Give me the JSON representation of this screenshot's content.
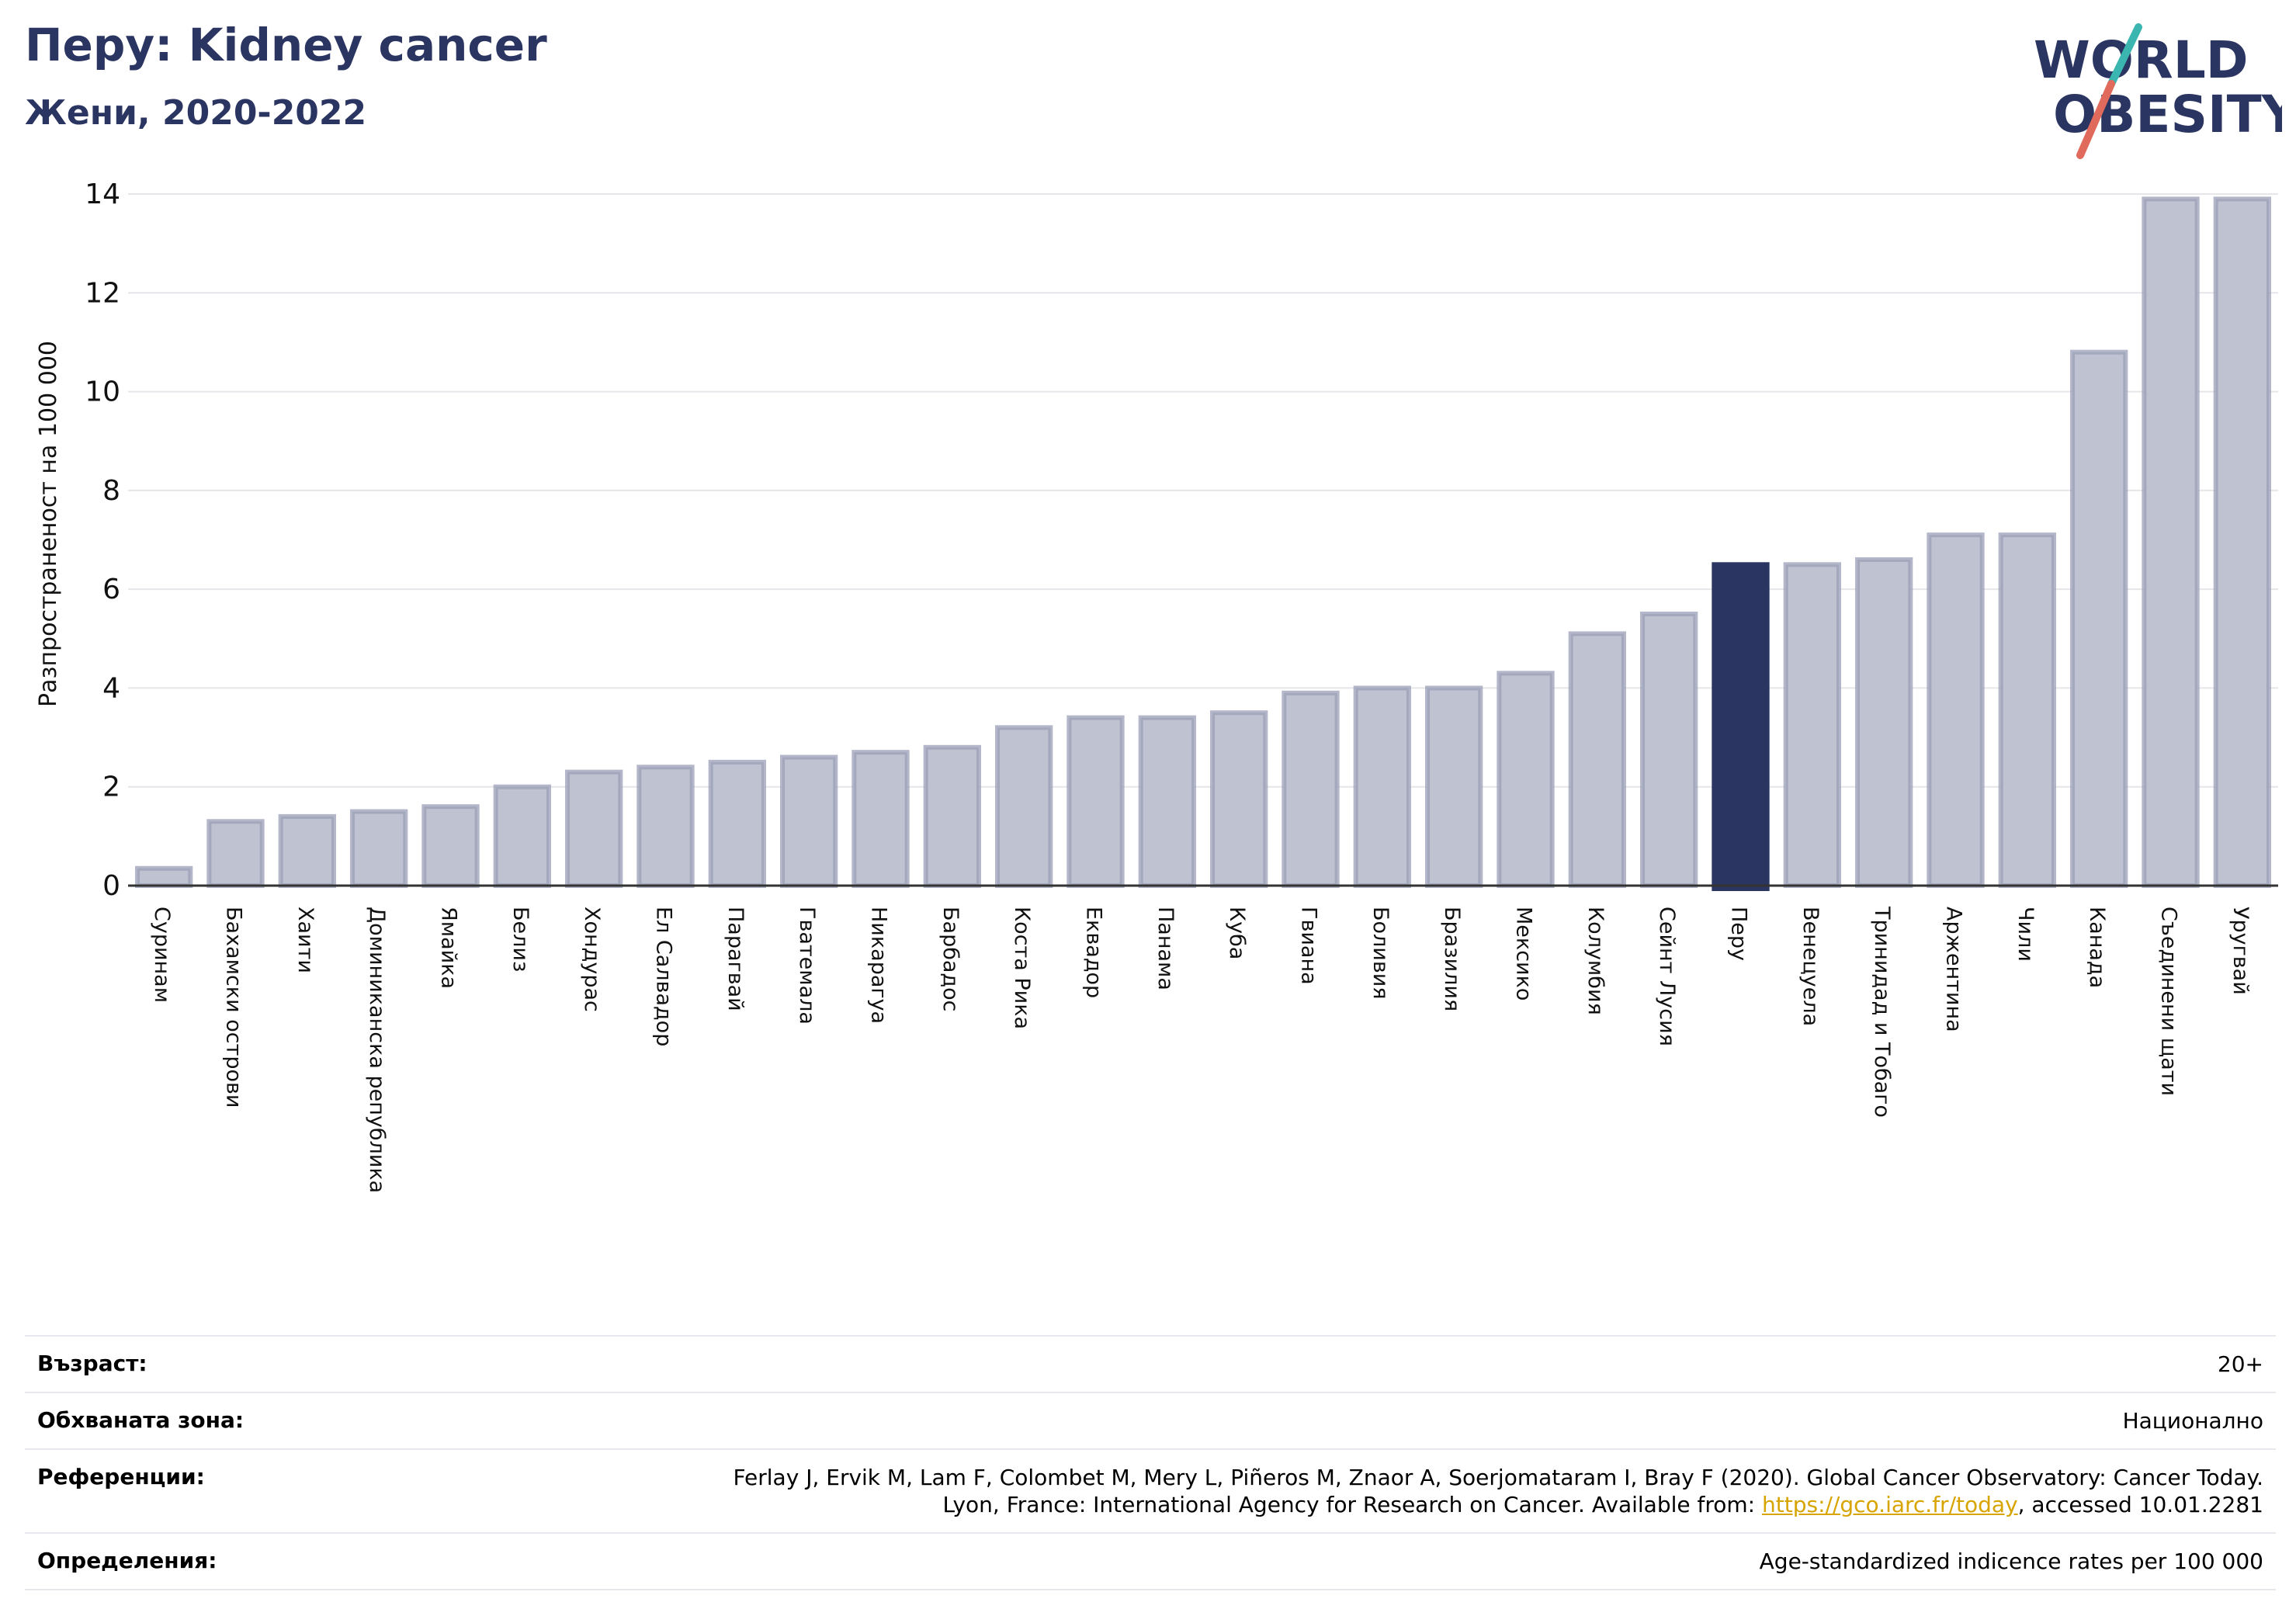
{
  "header": {
    "title": "Перу: Kidney cancer",
    "subtitle": "Жени, 2020-2022"
  },
  "logo": {
    "line1": "WORLD",
    "line2": "OBESITY"
  },
  "colors": {
    "bar": "#bfc2d0",
    "bar_edge": "#9a9fb7",
    "highlight": "#2b3561",
    "accent_teal": "#3ab5b0",
    "accent_red": "#e06b5c"
  },
  "chart_data": {
    "type": "bar",
    "ylabel": "Разпространеност  на 100 000",
    "xlabel": "",
    "ylim": [
      0,
      14
    ],
    "yticks": [
      0,
      2,
      4,
      6,
      8,
      10,
      12,
      14
    ],
    "grid": true,
    "highlight": "Перу",
    "categories": [
      "Суринам",
      "Бахамски острови",
      "Хаити",
      "Доминиканска република",
      "Ямайка",
      "Белиз",
      "Хондурас",
      "Ел Салвадор",
      "Парагвай",
      "Гватемала",
      "Никарагуа",
      "Барбадос",
      "Коста Рика",
      "Еквадор",
      "Панама",
      "Куба",
      "Гвиана",
      "Боливия",
      "Бразилия",
      "Мексико",
      "Колумбия",
      "Сейнт Лусия",
      "Перу",
      "Венецуела",
      "Тринидад и Тобаго",
      "Аржентина",
      "Чили",
      "Канада",
      "Съединени щати",
      "Уругвай"
    ],
    "values": [
      0.35,
      1.3,
      1.4,
      1.5,
      1.6,
      2.0,
      2.3,
      2.4,
      2.5,
      2.6,
      2.7,
      2.8,
      3.2,
      3.4,
      3.4,
      3.5,
      3.9,
      4.0,
      4.0,
      4.3,
      5.1,
      5.5,
      6.5,
      6.5,
      6.6,
      7.1,
      7.1,
      10.8,
      13.9,
      13.9
    ]
  },
  "info": {
    "age_label": "Възраст:",
    "age_value": "20+",
    "area_label": "Обхваната зона:",
    "area_value": "Национално",
    "ref_label": "Референции:",
    "ref_line1": "Ferlay J, Ervik M, Lam F, Colombet M, Mery L, Piñeros M, Znaor A, Soerjomataram I, Bray F (2020). Global Cancer Observatory: Cancer Today.",
    "ref_line2_pre": "Lyon, France: International Agency for Research on Cancer. Available from: ",
    "ref_link": "https://gco.iarc.fr/today",
    "ref_line2_post": ", accessed 10.01.2281",
    "def_label": "Определения:",
    "def_value": "Age-standardized indicence rates per 100 000"
  }
}
